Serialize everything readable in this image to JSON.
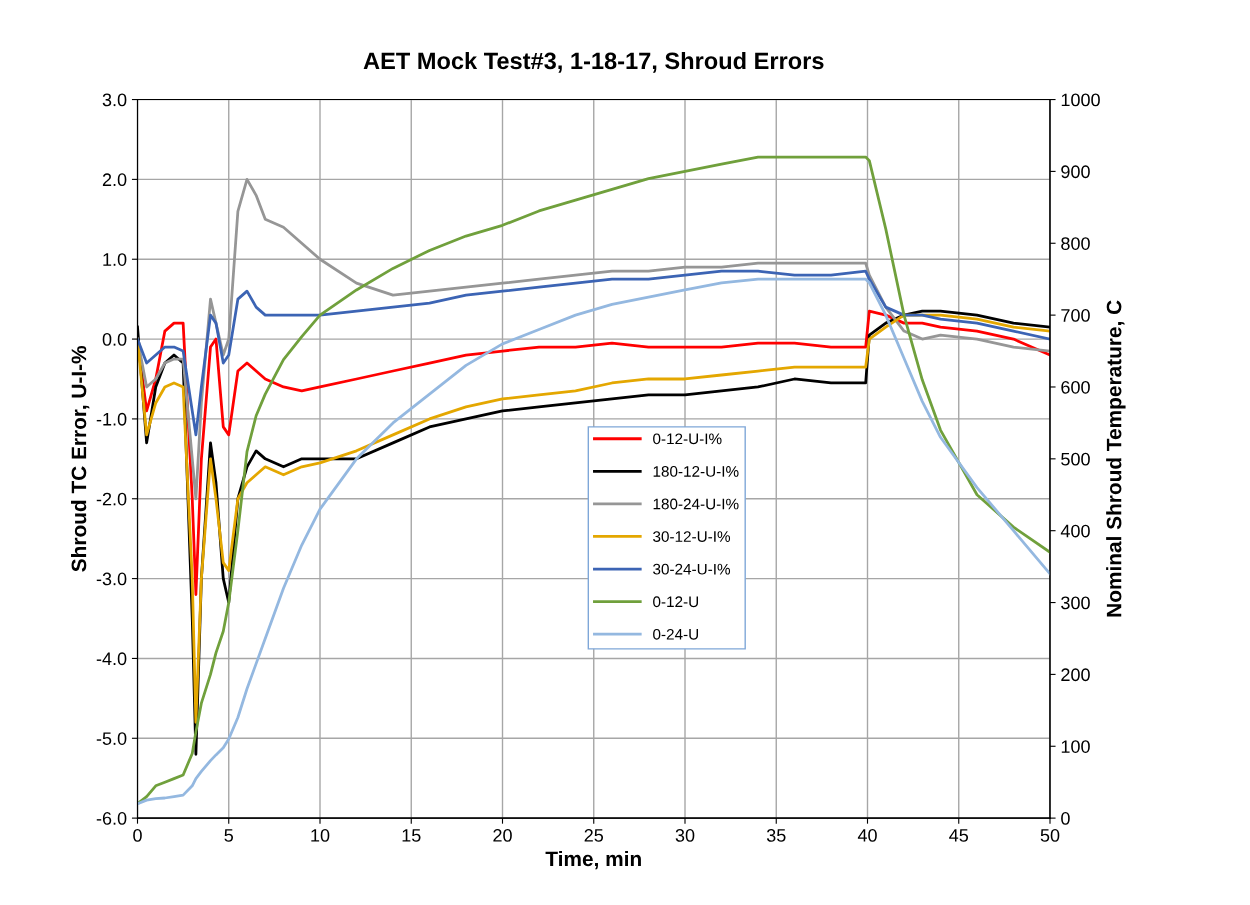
{
  "chart_data": {
    "type": "line",
    "title": "AET Mock Test#3, 1-18-17, Shroud Errors",
    "xlabel": "Time, min",
    "ylabel": "Shroud TC Error, U-I-%",
    "y2label": "Nominal Shroud Temperature, C",
    "x": [
      0,
      0.5,
      1,
      1.5,
      2,
      2.5,
      3,
      3.2,
      3.5,
      4,
      4.3,
      4.7,
      5,
      5.5,
      6,
      6.5,
      7,
      8,
      9,
      10,
      12,
      14,
      16,
      18,
      20,
      22,
      24,
      26,
      28,
      30,
      32,
      34,
      36,
      38,
      39.9,
      40.1,
      41,
      42,
      43,
      44,
      46,
      48,
      50
    ],
    "series": [
      {
        "name": "0-12-U-I%",
        "color": "#ff0000",
        "values": [
          0.0,
          -0.9,
          -0.5,
          0.1,
          0.2,
          0.2,
          -2.0,
          -3.2,
          -1.5,
          -0.1,
          0.0,
          -1.1,
          -1.2,
          -0.4,
          -0.3,
          -0.4,
          -0.5,
          -0.6,
          -0.65,
          -0.6,
          -0.5,
          -0.4,
          -0.3,
          -0.2,
          -0.15,
          -0.1,
          -0.1,
          -0.05,
          -0.1,
          -0.1,
          -0.1,
          -0.05,
          -0.05,
          -0.1,
          -0.1,
          0.35,
          0.3,
          0.2,
          0.2,
          0.15,
          0.1,
          0.0,
          -0.2
        ]
      },
      {
        "name": "180-12-U-I%",
        "color": "#000000",
        "values": [
          0.15,
          -1.3,
          -0.6,
          -0.3,
          -0.2,
          -0.3,
          -3.5,
          -5.2,
          -3.0,
          -1.3,
          -1.8,
          -3.0,
          -3.3,
          -2.0,
          -1.6,
          -1.4,
          -1.5,
          -1.6,
          -1.5,
          -1.5,
          -1.5,
          -1.3,
          -1.1,
          -1.0,
          -0.9,
          -0.85,
          -0.8,
          -0.75,
          -0.7,
          -0.7,
          -0.65,
          -0.6,
          -0.5,
          -0.55,
          -0.55,
          0.05,
          0.2,
          0.3,
          0.35,
          0.35,
          0.3,
          0.2,
          0.15
        ]
      },
      {
        "name": "180-24-U-I%",
        "color": "#969696",
        "values": [
          0.0,
          -0.6,
          -0.5,
          -0.3,
          -0.25,
          -0.25,
          -1.5,
          -2.0,
          -0.8,
          0.5,
          0.2,
          -0.2,
          0.0,
          1.6,
          2.0,
          1.8,
          1.5,
          1.4,
          1.2,
          1.0,
          0.7,
          0.55,
          0.6,
          0.65,
          0.7,
          0.75,
          0.8,
          0.85,
          0.85,
          0.9,
          0.9,
          0.95,
          0.95,
          0.95,
          0.95,
          0.8,
          0.4,
          0.1,
          0.0,
          0.05,
          0.0,
          -0.1,
          -0.15
        ]
      },
      {
        "name": "30-12-U-I%",
        "color": "#e4a700",
        "values": [
          0.0,
          -1.2,
          -0.8,
          -0.6,
          -0.55,
          -0.6,
          -3.0,
          -4.8,
          -3.0,
          -1.5,
          -2.0,
          -2.8,
          -2.9,
          -2.0,
          -1.8,
          -1.7,
          -1.6,
          -1.7,
          -1.6,
          -1.55,
          -1.4,
          -1.2,
          -1.0,
          -0.85,
          -0.75,
          -0.7,
          -0.65,
          -0.55,
          -0.5,
          -0.5,
          -0.45,
          -0.4,
          -0.35,
          -0.35,
          -0.35,
          0.0,
          0.15,
          0.3,
          0.3,
          0.3,
          0.25,
          0.15,
          0.1
        ]
      },
      {
        "name": "30-24-U-I%",
        "color": "#3c64b4",
        "values": [
          0.0,
          -0.3,
          -0.2,
          -0.1,
          -0.1,
          -0.15,
          -0.9,
          -1.2,
          -0.6,
          0.3,
          0.2,
          -0.3,
          -0.2,
          0.5,
          0.6,
          0.4,
          0.3,
          0.3,
          0.3,
          0.3,
          0.35,
          0.4,
          0.45,
          0.55,
          0.6,
          0.65,
          0.7,
          0.75,
          0.75,
          0.8,
          0.85,
          0.85,
          0.8,
          0.8,
          0.85,
          0.75,
          0.4,
          0.3,
          0.3,
          0.25,
          0.2,
          0.1,
          0.0
        ]
      },
      {
        "name": "0-12-U",
        "color": "#70a03c",
        "axis": "y2",
        "values": [
          20,
          30,
          45,
          50,
          55,
          60,
          90,
          120,
          160,
          200,
          230,
          260,
          300,
          400,
          510,
          560,
          590,
          638,
          670,
          700,
          735,
          765,
          790,
          810,
          825,
          845,
          860,
          875,
          890,
          900,
          910,
          920,
          920,
          920,
          920,
          915,
          820,
          700,
          610,
          540,
          450,
          405,
          370
        ]
      },
      {
        "name": "0-24-U",
        "color": "#94b8e0",
        "axis": "y2",
        "values": [
          20,
          25,
          27,
          28,
          30,
          32,
          45,
          55,
          65,
          80,
          88,
          98,
          110,
          140,
          180,
          215,
          250,
          320,
          380,
          430,
          500,
          550,
          590,
          630,
          660,
          680,
          700,
          715,
          725,
          735,
          745,
          750,
          750,
          750,
          750,
          745,
          700,
          640,
          580,
          530,
          460,
          400,
          340
        ]
      }
    ],
    "xlim": [
      0,
      50
    ],
    "xticks": [
      0,
      5,
      10,
      15,
      20,
      25,
      30,
      35,
      40,
      45,
      50
    ],
    "ylim": [
      -6.0,
      3.0
    ],
    "yticks": [
      {
        "value": -6.0,
        "label": "-6.0"
      },
      {
        "value": -5.0,
        "label": "-5.0"
      },
      {
        "value": -4.0,
        "label": "-4.0"
      },
      {
        "value": -3.0,
        "label": "-3.0"
      },
      {
        "value": -2.0,
        "label": "-2.0"
      },
      {
        "value": -1.0,
        "label": "-1.0"
      },
      {
        "value": 0.0,
        "label": "0.0"
      },
      {
        "value": 1.0,
        "label": "1.0"
      },
      {
        "value": 2.0,
        "label": "2.0"
      },
      {
        "value": 3.0,
        "label": "3.0"
      }
    ],
    "y2lim": [
      0,
      1000
    ],
    "y2ticks": [
      0,
      100,
      200,
      300,
      400,
      500,
      600,
      700,
      800,
      900,
      1000
    ],
    "grid": true,
    "legend": "center"
  }
}
